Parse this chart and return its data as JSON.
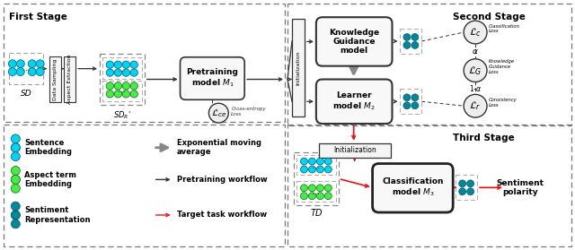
{
  "bg": "#ffffff",
  "cyan_light": "#00d4f0",
  "cyan_dark": "#008898",
  "green_light": "#44ee44",
  "red": "#ee1111",
  "gray": "#777777",
  "dark": "#222222",
  "box_fill": "#f5f5f5",
  "first_stage": "First Stage",
  "second_stage": "Second Stage",
  "third_stage": "Third Stage",
  "sd": "SD",
  "sdr": "SD_R",
  "td": "TD",
  "pretrain": "Pretraining\nmodel $M_1$",
  "knowledge": "Knowledge\nGuidance\nmodel",
  "learner": "Learner\nmodel $M_2$",
  "classify": "Classification\nmodel $M_3$",
  "data_samp": "Data Sampling",
  "asp_ext": "Aspect Extraction",
  "init1": "Initialization",
  "init2": "Initialization",
  "lce": "$\\mathcal{L}_{ce}$",
  "lc": "$\\mathcal{L}_c$",
  "lg": "$\\mathcal{L}_G$",
  "lr": "$\\mathcal{L}_r$",
  "cross_ent": "Cross-entropy\nLoss",
  "cls_loss": "Classification\nLoss",
  "kg_loss": "Knowledge\nGuidance\nLoss",
  "con_loss": "Consistency\nLoss",
  "alpha": "$\\alpha$",
  "one_alpha": "1-$\\alpha$",
  "sent_pol": "Sentiment\npolarity",
  "leg_se": "Sentence\nEmbedding",
  "leg_ae": "Aspect term\nEmbedding",
  "leg_sr": "Sentiment\nRepresentation",
  "leg_ema": "Exponential moving\naverage",
  "leg_pw": "Pretraining workflow",
  "leg_tw": "Target task workflow"
}
